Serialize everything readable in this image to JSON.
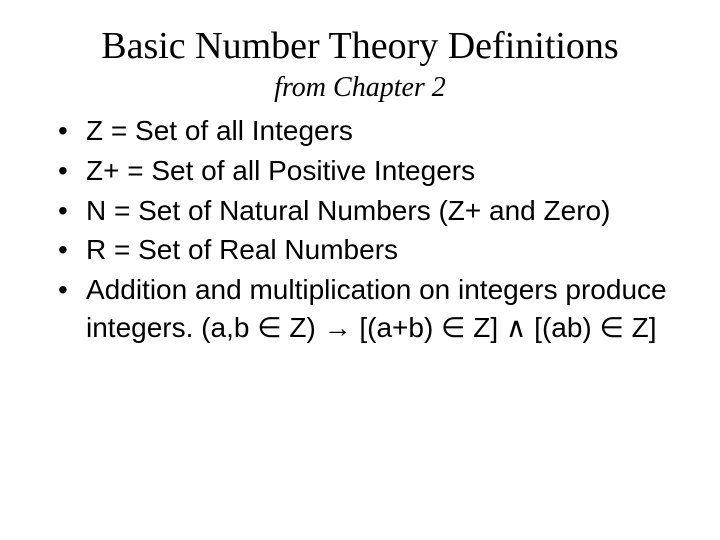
{
  "title": "Basic Number Theory Definitions",
  "subtitle": "from Chapter 2",
  "bullets": [
    "Z = Set of all Integers",
    "Z+ = Set of all Positive Integers",
    "N = Set of Natural Numbers (Z+ and Zero)",
    "R = Set of Real Numbers",
    "Addition and multiplication on integers produce integers. (a,b ∈ Z) → [(a+b) ∈ Z] ∧ [(ab) ∈ Z]"
  ]
}
